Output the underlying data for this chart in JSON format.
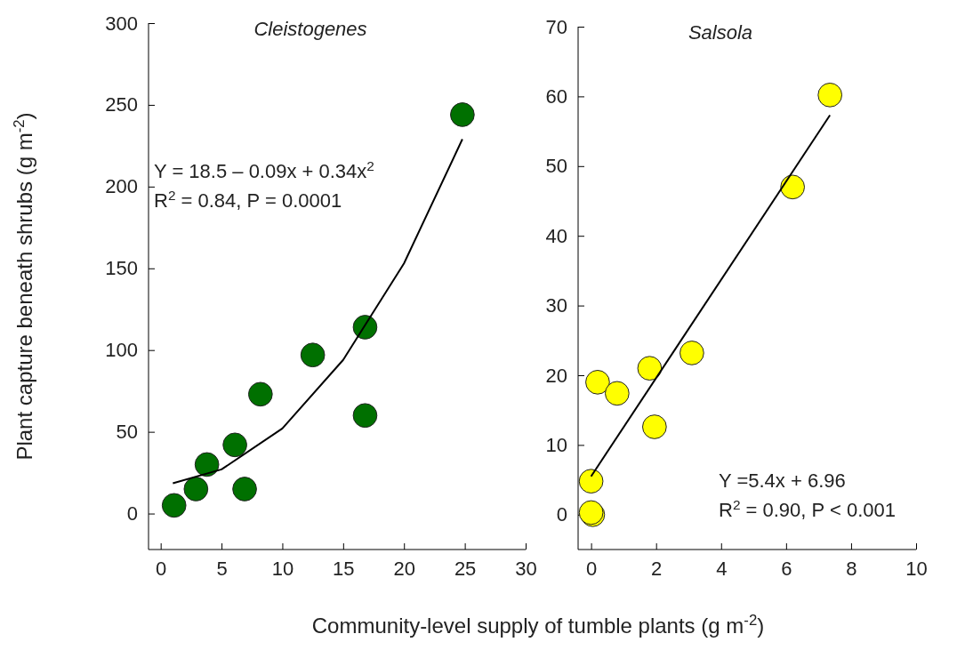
{
  "chart_data": [
    {
      "type": "scatter",
      "title": "Cleistogenes",
      "xlabel": "Community-level supply of tumble plants (g m$^{-2}$)",
      "ylabel": "Plant capture beneath shrubs (g m$^{-2}$)",
      "xlim": [
        -1,
        30
      ],
      "xticks": [
        0,
        5,
        10,
        15,
        20,
        25,
        30
      ],
      "ylim": [
        -22,
        300
      ],
      "yticks": [
        0,
        50,
        100,
        150,
        200,
        250,
        300
      ],
      "annotations": [
        "Y = 18.5 – 0.09x + 0.34x$^{2}$",
        "R$^{2}$ = 0.84, P = 0.0001"
      ],
      "series": [
        {
          "marker": "circle",
          "color": "#007000",
          "x": [
            1.1,
            2.9,
            3.8,
            6.1,
            6.9,
            8.2,
            12.5,
            16.8,
            16.8,
            24.8
          ],
          "values": [
            5,
            15,
            30,
            42,
            15,
            73,
            97,
            114,
            60,
            244
          ]
        },
        {
          "type": "line",
          "color": "#000000",
          "x": [
            1,
            5,
            10,
            15,
            20,
            24.8
          ],
          "values": [
            18.5,
            27,
            52,
            94,
            153,
            229
          ]
        }
      ]
    },
    {
      "type": "scatter",
      "title": "Salsola",
      "xlim": [
        -0.4,
        10
      ],
      "xticks": [
        0,
        2,
        4,
        6,
        8,
        10
      ],
      "ylim": [
        -5,
        70
      ],
      "yticks": [
        0,
        10,
        20,
        30,
        40,
        50,
        60,
        70
      ],
      "annotations": [
        "Y =5.4x + 6.96",
        "R$^{2}$ = 0.90, P < 0.001"
      ],
      "series": [
        {
          "marker": "circle",
          "color": "#ffff00",
          "x": [
            7.35,
            6.2,
            3.1,
            1.8,
            0.2,
            0.8,
            1.95,
            0,
            0.05,
            0
          ],
          "values": [
            60.2,
            47,
            23.2,
            21,
            19,
            17.4,
            12.6,
            4.8,
            0,
            0.3
          ]
        },
        {
          "type": "line",
          "color": "#000000",
          "x": [
            0,
            7.35
          ],
          "values": [
            5.5,
            57.3
          ]
        }
      ]
    }
  ]
}
